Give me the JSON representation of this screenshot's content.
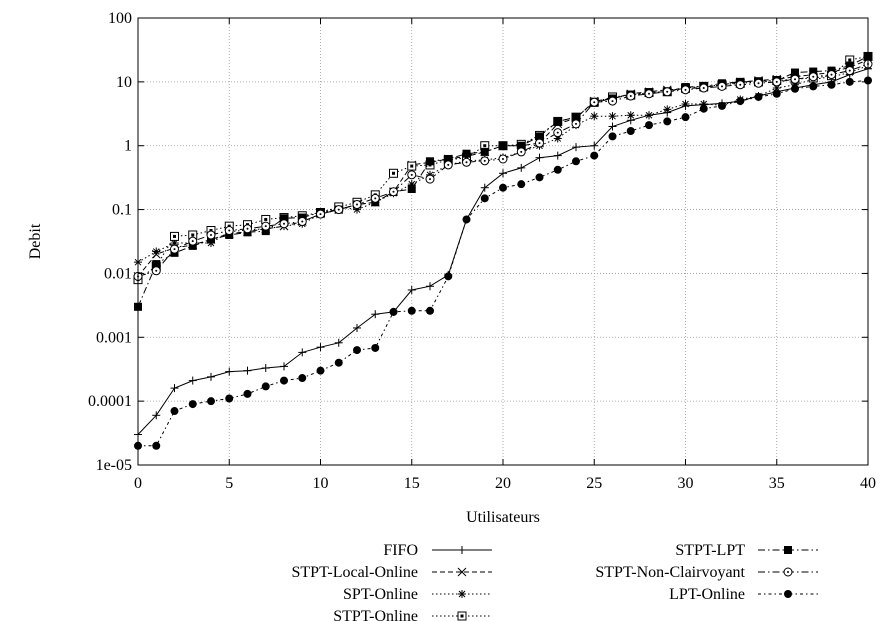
{
  "chart_data": {
    "type": "line",
    "title": "",
    "xlabel": "Utilisateurs",
    "ylabel": "Debit",
    "xlim": [
      0,
      40
    ],
    "ylim": [
      1e-05,
      100
    ],
    "yscale": "log",
    "grid": true,
    "legend_position": "bottom",
    "x_ticks": [
      "0",
      "5",
      "10",
      "15",
      "20",
      "25",
      "30",
      "35",
      "40"
    ],
    "y_ticks": [
      "1e-05",
      "0.0001",
      "0.001",
      "0.01",
      "0.1",
      "1",
      "10",
      "100"
    ],
    "x": [
      0,
      1,
      2,
      3,
      4,
      5,
      6,
      7,
      8,
      9,
      10,
      11,
      12,
      13,
      14,
      15,
      16,
      17,
      18,
      19,
      20,
      21,
      22,
      23,
      24,
      25,
      26,
      27,
      28,
      29,
      30,
      31,
      32,
      33,
      34,
      35,
      36,
      37,
      38,
      39,
      40
    ],
    "series": [
      {
        "name": "FIFO",
        "line": "solid",
        "marker": "plus",
        "values": [
          3e-05,
          6e-05,
          0.00016,
          0.00021,
          0.00024,
          0.00029,
          0.0003,
          0.00033,
          0.00035,
          0.00058,
          0.0007,
          0.00082,
          0.0014,
          0.0023,
          0.0025,
          0.0055,
          0.0063,
          0.0095,
          0.07,
          0.22,
          0.37,
          0.45,
          0.65,
          0.7,
          0.95,
          1.0,
          2.0,
          2.5,
          3.0,
          3.3,
          4.2,
          4.4,
          4.6,
          5.0,
          6.0,
          7.0,
          8.0,
          9.0,
          10.0,
          13.0,
          16.0
        ]
      },
      {
        "name": "STPT-Local-Online",
        "line": "dashed",
        "marker": "x",
        "values": [
          0.009,
          0.02,
          0.025,
          0.028,
          0.034,
          0.042,
          0.045,
          0.05,
          0.055,
          0.065,
          0.085,
          0.1,
          0.12,
          0.13,
          0.19,
          0.5,
          0.55,
          0.62,
          0.68,
          0.8,
          1.0,
          1.0,
          1.1,
          2.2,
          2.7,
          5.0,
          5.5,
          6.5,
          7.0,
          7.5,
          7.8,
          8.2,
          9.0,
          10.0,
          10.5,
          11.0,
          12.0,
          13.0,
          14.0,
          17.0,
          22.0
        ]
      },
      {
        "name": "SPT-Online",
        "line": "dotted",
        "marker": "star",
        "values": [
          0.015,
          0.022,
          0.03,
          0.03,
          0.03,
          0.045,
          0.048,
          0.05,
          0.055,
          0.06,
          0.085,
          0.11,
          0.1,
          0.13,
          0.18,
          0.25,
          0.35,
          0.5,
          0.58,
          0.6,
          0.65,
          0.8,
          1.0,
          1.3,
          2.1,
          2.9,
          2.9,
          3.0,
          3.0,
          3.7,
          4.5,
          4.5,
          4.3,
          5.3,
          6.0,
          8.0,
          9.0,
          11.0,
          12.0,
          14.0,
          18.0
        ]
      },
      {
        "name": "STPT-Online",
        "line": "dotted",
        "marker": "boxed-square",
        "values": [
          0.008,
          0.013,
          0.038,
          0.04,
          0.047,
          0.055,
          0.058,
          0.07,
          0.075,
          0.08,
          0.09,
          0.11,
          0.13,
          0.17,
          0.37,
          0.48,
          0.5,
          0.6,
          0.65,
          1.0,
          1.0,
          1.05,
          1.45,
          2.4,
          2.8,
          4.8,
          5.8,
          6.2,
          6.8,
          7.0,
          8.0,
          8.5,
          9.0,
          9.5,
          10.0,
          10.5,
          11.0,
          11.5,
          12.5,
          22.0,
          25.0
        ]
      },
      {
        "name": "STPT-LPT",
        "line": "dashdot",
        "marker": "filled-square",
        "values": [
          0.003,
          0.014,
          0.021,
          0.027,
          0.034,
          0.04,
          0.044,
          0.046,
          0.073,
          0.075,
          0.09,
          0.1,
          0.12,
          0.13,
          0.19,
          0.21,
          0.57,
          0.62,
          0.75,
          0.8,
          1.0,
          1.0,
          1.4,
          2.4,
          2.8,
          4.7,
          5.5,
          6.3,
          6.8,
          7.0,
          8.3,
          8.5,
          9.5,
          10.0,
          10.2,
          10.5,
          14.0,
          14.5,
          15.0,
          18.0,
          25.0
        ]
      },
      {
        "name": "STPT-Non-Clairvoyant",
        "line": "dashdot",
        "marker": "circle-dot",
        "values": [
          0.009,
          0.011,
          0.024,
          0.032,
          0.04,
          0.047,
          0.05,
          0.055,
          0.06,
          0.065,
          0.085,
          0.1,
          0.12,
          0.15,
          0.19,
          0.35,
          0.3,
          0.5,
          0.55,
          0.58,
          0.62,
          0.8,
          1.1,
          1.6,
          2.2,
          4.8,
          5.0,
          6.0,
          6.5,
          7.0,
          7.5,
          8.0,
          8.5,
          9.0,
          9.5,
          10.0,
          11.0,
          12.0,
          13.0,
          15.0,
          19.0
        ]
      },
      {
        "name": "LPT-Online",
        "line": "dashdot2",
        "marker": "filled-circle",
        "values": [
          2e-05,
          2e-05,
          7e-05,
          9e-05,
          0.0001,
          0.00011,
          0.00013,
          0.00017,
          0.00021,
          0.00023,
          0.0003,
          0.0004,
          0.00063,
          0.00068,
          0.0025,
          0.0026,
          0.0026,
          0.009,
          0.07,
          0.15,
          0.22,
          0.25,
          0.32,
          0.42,
          0.57,
          0.7,
          1.4,
          1.7,
          2.1,
          2.4,
          2.8,
          3.8,
          4.2,
          5.0,
          5.8,
          6.5,
          7.8,
          8.5,
          9.0,
          10.0,
          10.5
        ]
      }
    ]
  }
}
